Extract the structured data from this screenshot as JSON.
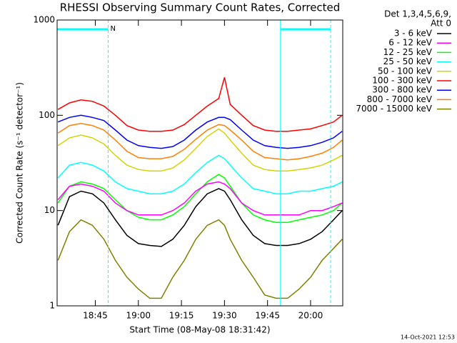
{
  "chart_data": {
    "type": "line",
    "title": "RHESSI Observing Summary Count Rates, Corrected",
    "xlabel": "Start Time (08-May-08 18:31:42)",
    "ylabel": "Corrected Count Rate (s⁻¹ detector⁻¹)",
    "legend_title": [
      "Det 1,3,4,5,6,9,",
      "Att 0"
    ],
    "footer": "14-Oct-2021 12:53",
    "log_y": true,
    "xlim": [
      "18:31:42",
      "20:11:12"
    ],
    "xticks": [
      "18:45",
      "19:00",
      "19:15",
      "19:30",
      "19:45",
      "20:00"
    ],
    "ylim": [
      1,
      1000
    ],
    "yticks": [
      1,
      10,
      100,
      1000
    ],
    "marker_color": "#00ffff",
    "vlines": [
      {
        "x": "18:31:42",
        "dashed": false
      },
      {
        "x": "18:49:30",
        "dashed": true
      },
      {
        "x": "19:49:30",
        "dashed": false
      },
      {
        "x": "20:07:00",
        "dashed": true
      }
    ],
    "bars": [
      {
        "start": "18:31:42",
        "end": "18:49:30"
      },
      {
        "start": "19:49:30",
        "end": "20:07:00"
      }
    ],
    "annotations": [
      {
        "text": "N",
        "x": "18:49:30"
      }
    ],
    "x": [
      "18:32",
      "18:36",
      "18:40",
      "18:44",
      "18:48",
      "18:52",
      "18:56",
      "19:00",
      "19:04",
      "19:08",
      "19:12",
      "19:16",
      "19:20",
      "19:24",
      "19:28",
      "19:30",
      "19:32",
      "19:36",
      "19:40",
      "19:44",
      "19:48",
      "19:52",
      "19:56",
      "20:00",
      "20:04",
      "20:08",
      "20:11"
    ],
    "series": [
      {
        "name": "3 - 6 keV",
        "color": "#000000",
        "values": [
          7,
          14,
          16,
          15,
          12,
          8,
          5.5,
          4.5,
          4.3,
          4.2,
          5,
          7,
          11,
          15,
          17,
          16,
          13,
          8,
          5.5,
          4.5,
          4.3,
          4.3,
          4.5,
          5,
          6,
          8,
          10
        ]
      },
      {
        "name": "6 - 12 keV",
        "color": "#ff00ff",
        "values": [
          13,
          18,
          19,
          18,
          16,
          12,
          10,
          9,
          9,
          9,
          10,
          12,
          16,
          19,
          20,
          19,
          17,
          12,
          10,
          9,
          9,
          9,
          9,
          10,
          10,
          11,
          12
        ]
      },
      {
        "name": "12 - 25 keV",
        "color": "#00ff00",
        "values": [
          12,
          18,
          20,
          19,
          17,
          13,
          10,
          8.5,
          8,
          8,
          9,
          11,
          15,
          20,
          24,
          22,
          18,
          12,
          9,
          8,
          7.5,
          7.5,
          8,
          8.5,
          9,
          10,
          12
        ]
      },
      {
        "name": "25 - 50 keV",
        "color": "#00ffff",
        "values": [
          22,
          30,
          32,
          30,
          26,
          20,
          17,
          16,
          15,
          15,
          16,
          19,
          25,
          32,
          38,
          35,
          30,
          22,
          17,
          16,
          15,
          15,
          16,
          16,
          17,
          18,
          20
        ]
      },
      {
        "name": "50 - 100 keV",
        "color": "#d4d400",
        "values": [
          48,
          58,
          62,
          58,
          50,
          38,
          30,
          27,
          26,
          26,
          28,
          34,
          45,
          60,
          72,
          65,
          55,
          40,
          30,
          27,
          26,
          26,
          27,
          28,
          30,
          34,
          38
        ]
      },
      {
        "name": "100 - 300 keV",
        "color": "#ff0000",
        "values": [
          115,
          135,
          145,
          140,
          125,
          100,
          78,
          70,
          68,
          68,
          70,
          80,
          100,
          125,
          150,
          250,
          130,
          100,
          78,
          70,
          68,
          68,
          70,
          72,
          78,
          85,
          100
        ]
      },
      {
        "name": "300 - 800 keV",
        "color": "#0000ff",
        "values": [
          85,
          95,
          100,
          95,
          88,
          70,
          55,
          48,
          46,
          45,
          47,
          55,
          70,
          85,
          95,
          95,
          90,
          70,
          55,
          48,
          46,
          45,
          46,
          48,
          52,
          58,
          68
        ]
      },
      {
        "name": "800 - 7000 keV",
        "color": "#ff8000",
        "values": [
          65,
          78,
          82,
          78,
          70,
          55,
          42,
          36,
          35,
          35,
          37,
          44,
          56,
          70,
          80,
          78,
          70,
          55,
          42,
          36,
          35,
          34,
          35,
          37,
          40,
          46,
          55
        ]
      },
      {
        "name": "7000 - 15000 keV",
        "color": "#808000",
        "values": [
          3,
          6,
          8,
          7,
          5,
          3,
          2,
          1.5,
          1.2,
          1.2,
          2,
          3,
          5,
          7,
          8,
          7,
          5,
          3,
          2,
          1.3,
          1.2,
          1.2,
          1.5,
          2,
          3,
          4,
          5
        ]
      }
    ]
  }
}
